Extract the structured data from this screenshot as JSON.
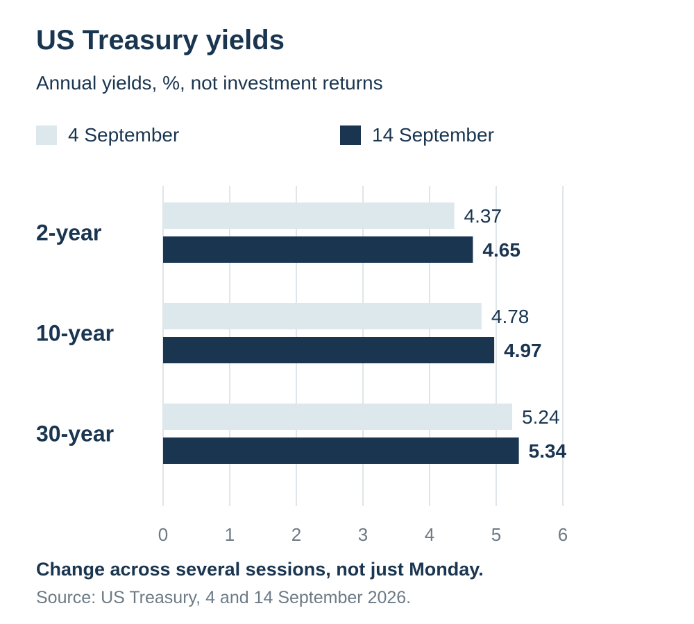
{
  "title": "US Treasury yields",
  "subtitle": "Annual yields, %, not investment returns",
  "note": "Change across several sessions, not just Monday.",
  "source": "Source: US Treasury, 4 and 14 September 2026.",
  "chart_data": {
    "type": "bar",
    "orientation": "horizontal",
    "categories": [
      "2-year",
      "10-year",
      "30-year"
    ],
    "series": [
      {
        "name": "4 September",
        "values": [
          4.37,
          4.78,
          5.24
        ],
        "color": "#dde8ed"
      },
      {
        "name": "14 September",
        "values": [
          4.65,
          4.97,
          5.34
        ],
        "color": "#1a3550"
      }
    ],
    "value_labels": [
      [
        "4.37",
        "4.78",
        "5.24"
      ],
      [
        "4.65",
        "4.97",
        "5.34"
      ]
    ],
    "xlim": [
      0,
      6
    ],
    "xticks": [
      0,
      1,
      2,
      3,
      4,
      5,
      6
    ],
    "grid": true,
    "legend": "top-left"
  }
}
